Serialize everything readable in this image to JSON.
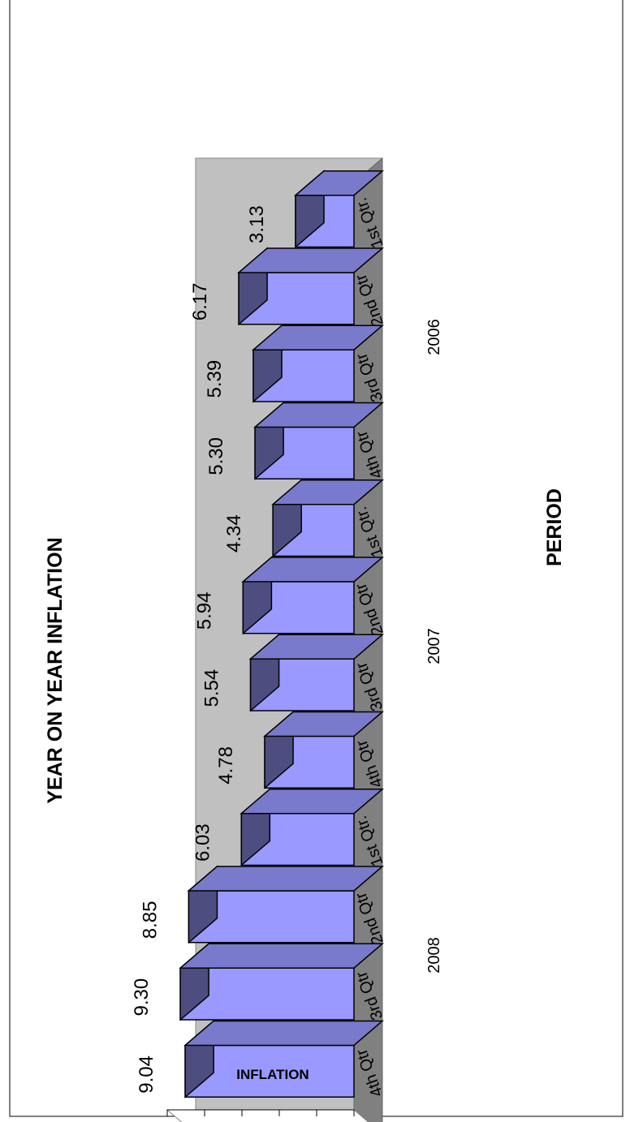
{
  "chart_data": {
    "type": "bar",
    "title": "YEAR ON YEAR INFLATION",
    "xlabel": "PERIOD",
    "ylabel": "INFLATION",
    "ylim": [
      0,
      10
    ],
    "y_ticks": [
      "0.00",
      "2.00",
      "4.00",
      "6.00",
      "8.00",
      "10.00"
    ],
    "categories": [
      {
        "quarter": "1st Qtr.",
        "year": "2006"
      },
      {
        "quarter": "2nd Qtr",
        "year": "2006"
      },
      {
        "quarter": "3rd Qtr",
        "year": "2006"
      },
      {
        "quarter": "4th Qtr",
        "year": "2006"
      },
      {
        "quarter": "1st Qtr.",
        "year": "2007"
      },
      {
        "quarter": "2nd Qtr",
        "year": "2007"
      },
      {
        "quarter": "3rd Qtr",
        "year": "2007"
      },
      {
        "quarter": "4th Qtr",
        "year": "2007"
      },
      {
        "quarter": "1st Qtr.",
        "year": "2008"
      },
      {
        "quarter": "2nd Qtr",
        "year": "2008"
      },
      {
        "quarter": "3rd Qtr",
        "year": "2008"
      },
      {
        "quarter": "4th Qtr",
        "year": "2008"
      }
    ],
    "years": [
      "2006",
      "2007",
      "2008"
    ],
    "values": [
      3.13,
      6.17,
      5.39,
      5.3,
      4.34,
      5.94,
      5.54,
      4.78,
      6.03,
      8.85,
      9.3,
      9.04
    ],
    "value_labels": [
      "3.13",
      "6.17",
      "5.39",
      "5.30",
      "4.34",
      "5.94",
      "5.54",
      "4.78",
      "6.03",
      "8.85",
      "9.30",
      "9.04"
    ],
    "legend": "none",
    "grid": false,
    "three_d": true,
    "colors": {
      "bar_front": "#9999ff",
      "bar_top": "#4d4d80",
      "bar_side": "#7a7acc",
      "back_wall": "#c0c0c0",
      "floor": "#808080",
      "side_wall": "#ffffff"
    }
  }
}
